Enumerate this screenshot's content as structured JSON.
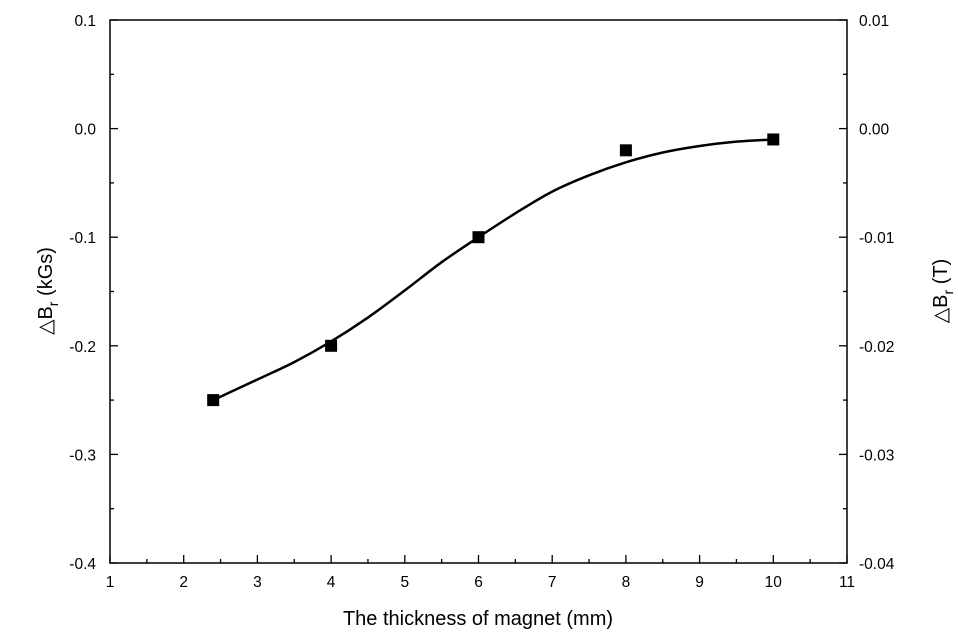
{
  "chart_data": {
    "type": "scatter",
    "xlabel": "The thickness of magnet (mm)",
    "ylabel_left": {
      "prefix": "△B",
      "sub": "r",
      "suffix": " (kGs)"
    },
    "ylabel_right": {
      "prefix": "△B",
      "sub": "r",
      "suffix": " (T)"
    },
    "xlim": [
      1,
      11
    ],
    "ylim": [
      -0.4,
      0.1
    ],
    "ylim_right": [
      -0.04,
      0.01
    ],
    "x_ticks": [
      "1",
      "2",
      "3",
      "4",
      "5",
      "6",
      "7",
      "8",
      "9",
      "10",
      "11"
    ],
    "y_ticks_left": [
      "-0.4",
      "-0.3",
      "-0.2",
      "-0.1",
      "0.0",
      "0.1"
    ],
    "y_ticks_right": [
      "-0.04",
      "-0.03",
      "-0.02",
      "-0.01",
      "0.00",
      "0.01"
    ],
    "grid": false,
    "series": [
      {
        "x": [
          2.4,
          4,
          6,
          8,
          10
        ],
        "y": [
          -0.25,
          -0.2,
          -0.1,
          -0.02,
          -0.01
        ],
        "marker": "square",
        "fit": "smooth"
      }
    ],
    "fit_curve": {
      "x": [
        2.4,
        3,
        3.5,
        4,
        4.5,
        5,
        5.5,
        6,
        6.5,
        7,
        7.5,
        8,
        8.5,
        9,
        9.5,
        10
      ],
      "y": [
        -0.25,
        -0.231,
        -0.215,
        -0.196,
        -0.174,
        -0.149,
        -0.123,
        -0.1,
        -0.078,
        -0.058,
        -0.043,
        -0.031,
        -0.022,
        -0.016,
        -0.012,
        -0.01
      ]
    },
    "colors": {
      "axis": "#000000",
      "marker": "#000000",
      "line": "#000000"
    }
  }
}
